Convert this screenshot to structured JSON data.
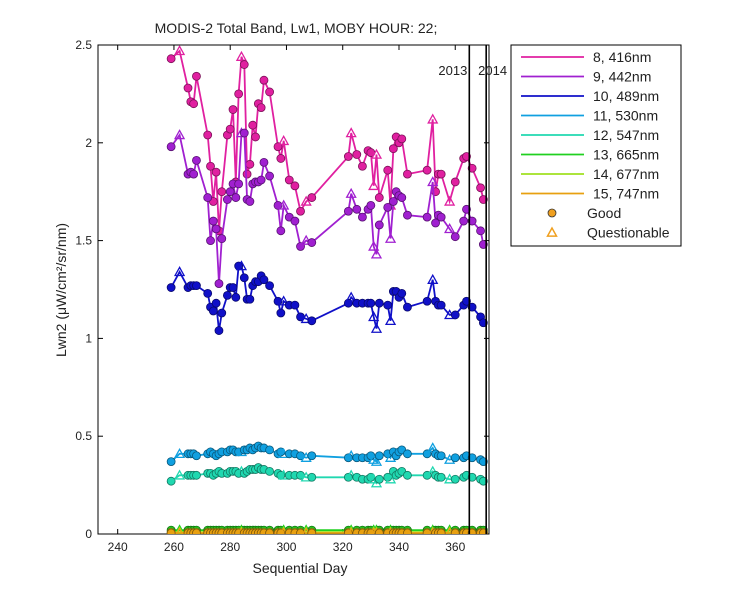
{
  "chart_data": {
    "type": "line",
    "title": "MODIS-2 Total Band, Lw1, MOBY HOUR: 22;",
    "xlabel": "Sequential Day",
    "ylabel": "Lwn2 (μW/cm²/sr/nm)",
    "xlim": [
      233,
      372
    ],
    "ylim": [
      0,
      2.5
    ],
    "x_ticks": [
      "240",
      "260",
      "280",
      "300",
      "320",
      "340",
      "360"
    ],
    "y_ticks": [
      "0",
      "0.5",
      "1",
      "1.5",
      "2",
      "2.5"
    ],
    "grid": false,
    "legend_position": "outside-top-right",
    "year_markers": [
      {
        "x": 365,
        "label": "2013"
      },
      {
        "x": 371,
        "label": "2014"
      }
    ],
    "x": [
      259,
      262,
      265,
      266,
      267,
      268,
      272,
      273,
      274,
      275,
      276,
      277,
      279,
      280,
      281,
      282,
      283,
      284,
      285,
      286,
      287,
      288,
      289,
      290,
      291,
      292,
      294,
      297,
      298,
      299,
      301,
      303,
      305,
      307,
      309,
      322,
      323,
      325,
      327,
      329,
      330,
      331,
      332,
      333,
      336,
      337,
      338,
      339,
      340,
      341,
      343,
      350,
      352,
      353,
      354,
      355,
      358,
      360,
      363,
      364,
      366,
      369,
      370
    ],
    "series": [
      {
        "name": "8, 416nm",
        "color": "#e020a0",
        "values": [
          2.43,
          2.47,
          2.28,
          2.21,
          2.2,
          2.34,
          2.04,
          1.88,
          1.7,
          1.85,
          1.55,
          1.75,
          2.04,
          2.07,
          2.17,
          1.8,
          2.25,
          2.44,
          2.4,
          1.84,
          1.89,
          2.09,
          2.03,
          2.2,
          2.18,
          2.32,
          2.26,
          1.98,
          1.92,
          2.01,
          1.81,
          1.78,
          1.65,
          1.7,
          1.72,
          1.93,
          2.05,
          1.94,
          1.88,
          1.96,
          1.95,
          1.78,
          1.94,
          1.72,
          1.86,
          1.68,
          1.97,
          2.03,
          2.0,
          2.02,
          1.84,
          1.86,
          2.12,
          1.75,
          1.84,
          1.84,
          1.7,
          1.8,
          1.92,
          1.93,
          1.87,
          1.77,
          1.71
        ]
      },
      {
        "name": "9, 442nm",
        "color": "#a020d0",
        "values": [
          1.98,
          2.04,
          1.84,
          1.85,
          1.84,
          1.91,
          1.72,
          1.5,
          1.6,
          1.56,
          1.28,
          1.51,
          1.71,
          1.75,
          1.79,
          1.72,
          1.79,
          2.05,
          2.05,
          1.71,
          1.7,
          1.79,
          1.8,
          1.8,
          1.81,
          1.9,
          1.83,
          1.68,
          1.55,
          1.68,
          1.62,
          1.6,
          1.47,
          1.5,
          1.49,
          1.65,
          1.74,
          1.66,
          1.62,
          1.66,
          1.68,
          1.47,
          1.43,
          1.58,
          1.67,
          1.51,
          1.7,
          1.75,
          1.73,
          1.72,
          1.63,
          1.62,
          1.8,
          1.59,
          1.63,
          1.62,
          1.56,
          1.52,
          1.6,
          1.66,
          1.6,
          1.55,
          1.48
        ]
      },
      {
        "name": "10, 489nm",
        "color": "#1010c8",
        "values": [
          1.26,
          1.34,
          1.26,
          1.27,
          1.27,
          1.27,
          1.23,
          1.16,
          1.14,
          1.18,
          1.04,
          1.13,
          1.22,
          1.26,
          1.26,
          1.21,
          1.37,
          1.37,
          1.31,
          1.2,
          1.2,
          1.27,
          1.29,
          1.29,
          1.32,
          1.3,
          1.27,
          1.19,
          1.13,
          1.19,
          1.17,
          1.17,
          1.11,
          1.1,
          1.09,
          1.18,
          1.21,
          1.18,
          1.18,
          1.18,
          1.18,
          1.11,
          1.05,
          1.18,
          1.17,
          1.09,
          1.24,
          1.24,
          1.21,
          1.23,
          1.16,
          1.19,
          1.3,
          1.19,
          1.17,
          1.17,
          1.12,
          1.12,
          1.17,
          1.19,
          1.16,
          1.11,
          1.08
        ]
      },
      {
        "name": "11, 530nm",
        "color": "#10a0e0",
        "values": [
          0.37,
          0.41,
          0.41,
          0.41,
          0.41,
          0.4,
          0.41,
          0.42,
          0.41,
          0.4,
          0.41,
          0.42,
          0.42,
          0.43,
          0.43,
          0.42,
          0.42,
          0.42,
          0.43,
          0.43,
          0.44,
          0.43,
          0.44,
          0.45,
          0.44,
          0.44,
          0.43,
          0.41,
          0.42,
          0.41,
          0.41,
          0.41,
          0.4,
          0.39,
          0.4,
          0.39,
          0.4,
          0.39,
          0.39,
          0.39,
          0.4,
          0.38,
          0.37,
          0.4,
          0.41,
          0.39,
          0.42,
          0.4,
          0.42,
          0.43,
          0.41,
          0.41,
          0.44,
          0.41,
          0.4,
          0.4,
          0.38,
          0.39,
          0.39,
          0.4,
          0.39,
          0.38,
          0.37
        ]
      },
      {
        "name": "12, 547nm",
        "color": "#20d8b0",
        "values": [
          0.27,
          0.3,
          0.3,
          0.3,
          0.3,
          0.3,
          0.31,
          0.31,
          0.3,
          0.31,
          0.32,
          0.31,
          0.31,
          0.32,
          0.32,
          0.32,
          0.31,
          0.32,
          0.31,
          0.32,
          0.33,
          0.33,
          0.33,
          0.34,
          0.33,
          0.33,
          0.32,
          0.31,
          0.3,
          0.3,
          0.3,
          0.3,
          0.3,
          0.29,
          0.29,
          0.29,
          0.3,
          0.29,
          0.28,
          0.28,
          0.29,
          0.28,
          0.26,
          0.28,
          0.29,
          0.28,
          0.32,
          0.3,
          0.31,
          0.32,
          0.3,
          0.3,
          0.32,
          0.3,
          0.29,
          0.29,
          0.28,
          0.28,
          0.29,
          0.3,
          0.29,
          0.28,
          0.27
        ]
      },
      {
        "name": "13, 665nm",
        "color": "#20d020",
        "values": [
          0.02,
          0.02,
          0.02,
          0.02,
          0.02,
          0.02,
          0.02,
          0.02,
          0.02,
          0.02,
          0.02,
          0.02,
          0.02,
          0.02,
          0.02,
          0.02,
          0.02,
          0.02,
          0.02,
          0.02,
          0.02,
          0.02,
          0.02,
          0.02,
          0.02,
          0.02,
          0.02,
          0.02,
          0.02,
          0.02,
          0.02,
          0.02,
          0.02,
          0.02,
          0.02,
          0.02,
          0.02,
          0.02,
          0.02,
          0.02,
          0.02,
          0.02,
          0.02,
          0.02,
          0.02,
          0.02,
          0.02,
          0.02,
          0.02,
          0.02,
          0.02,
          0.02,
          0.02,
          0.02,
          0.02,
          0.02,
          0.02,
          0.02,
          0.02,
          0.02,
          0.02,
          0.02,
          0.02
        ]
      },
      {
        "name": "14, 677nm",
        "color": "#a0e020",
        "values": [
          0.01,
          0.01,
          0.01,
          0.01,
          0.01,
          0.01,
          0.01,
          0.01,
          0.01,
          0.01,
          0.01,
          0.01,
          0.01,
          0.01,
          0.01,
          0.01,
          0.01,
          0.01,
          0.01,
          0.01,
          0.01,
          0.01,
          0.01,
          0.01,
          0.01,
          0.01,
          0.01,
          0.01,
          0.01,
          0.01,
          0.01,
          0.01,
          0.01,
          0.01,
          0.01,
          0.01,
          0.01,
          0.01,
          0.01,
          0.01,
          0.01,
          0.01,
          0.01,
          0.01,
          0.01,
          0.01,
          0.01,
          0.01,
          0.01,
          0.01,
          0.01,
          0.01,
          0.01,
          0.01,
          0.01,
          0.01,
          0.01,
          0.01,
          0.01,
          0.01,
          0.01,
          0.01,
          0.01
        ]
      },
      {
        "name": "15, 747nm",
        "color": "#e8a010",
        "values": [
          0.005,
          0.005,
          0.005,
          0.005,
          0.005,
          0.005,
          0.005,
          0.005,
          0.005,
          0.005,
          0.005,
          0.005,
          0.005,
          0.005,
          0.005,
          0.005,
          0.005,
          0.005,
          0.005,
          0.005,
          0.005,
          0.005,
          0.005,
          0.005,
          0.005,
          0.005,
          0.005,
          0.005,
          0.005,
          0.005,
          0.005,
          0.005,
          0.005,
          0.005,
          0.005,
          0.005,
          0.005,
          0.005,
          0.005,
          0.005,
          0.005,
          0.005,
          0.005,
          0.005,
          0.005,
          0.005,
          0.005,
          0.005,
          0.005,
          0.005,
          0.005,
          0.005,
          0.005,
          0.005,
          0.005,
          0.005,
          0.005,
          0.005,
          0.005,
          0.005,
          0.005,
          0.005,
          0.005
        ]
      }
    ],
    "quality_flags": [
      "G",
      "Q",
      "G",
      "G",
      "G",
      "G",
      "G",
      "G",
      "G",
      "G",
      "G",
      "G",
      "G",
      "G",
      "G",
      "G",
      "G",
      "Q",
      "G",
      "G",
      "G",
      "G",
      "G",
      "G",
      "G",
      "G",
      "G",
      "G",
      "G",
      "Q",
      "G",
      "G",
      "G",
      "Q",
      "G",
      "G",
      "Q",
      "G",
      "G",
      "G",
      "G",
      "Q",
      "Q",
      "G",
      "G",
      "Q",
      "G",
      "G",
      "G",
      "G",
      "G",
      "G",
      "Q",
      "G",
      "G",
      "G",
      "Q",
      "G",
      "G",
      "G",
      "G",
      "G",
      "G"
    ],
    "marker_legend": [
      {
        "label": "Good",
        "marker": "circle",
        "color": "#f0a020"
      },
      {
        "label": "Questionable",
        "marker": "triangle",
        "color": "#f0a020"
      }
    ]
  }
}
